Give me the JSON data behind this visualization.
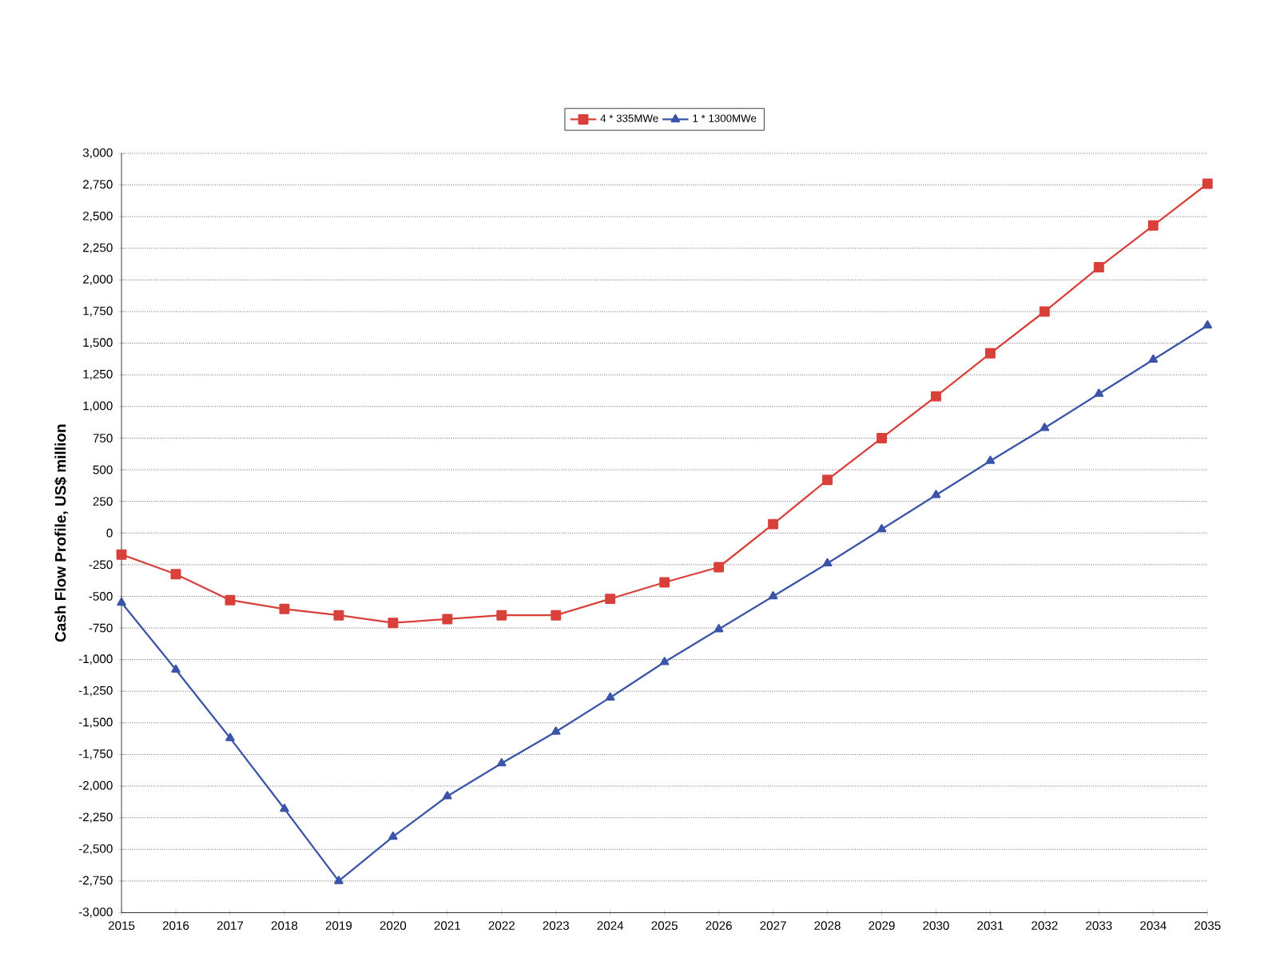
{
  "chart_data": {
    "type": "line",
    "ylabel": "Cash Flow Profile, US$ million",
    "x": [
      2015,
      2016,
      2017,
      2018,
      2019,
      2020,
      2021,
      2022,
      2023,
      2024,
      2025,
      2026,
      2027,
      2028,
      2029,
      2030,
      2031,
      2032,
      2033,
      2034,
      2035
    ],
    "series": [
      {
        "name": "4 * 335MWe",
        "color": "#d9403a",
        "marker": "square",
        "values": [
          -170,
          -325,
          -530,
          -600,
          -650,
          -710,
          -680,
          -650,
          -650,
          -520,
          -390,
          -270,
          70,
          420,
          750,
          1080,
          1420,
          1750,
          2100,
          2430,
          2760
        ]
      },
      {
        "name": "1 * 1300MWe",
        "color": "#3a55a8",
        "marker": "triangle",
        "values": [
          -550,
          -1080,
          -1620,
          -2180,
          -2750,
          -2400,
          -2080,
          -1820,
          -1570,
          -1300,
          -1020,
          -760,
          -500,
          -240,
          30,
          300,
          570,
          830,
          1100,
          1370,
          1640
        ]
      }
    ],
    "xlim": [
      2015,
      2035
    ],
    "xticks": [
      2015,
      2016,
      2017,
      2018,
      2019,
      2020,
      2021,
      2022,
      2023,
      2024,
      2025,
      2026,
      2027,
      2028,
      2029,
      2030,
      2031,
      2032,
      2033,
      2034,
      2035
    ],
    "ylim": [
      -3000,
      3000
    ],
    "yticks": [
      {
        "value": -3000,
        "label": "-3,000"
      },
      {
        "value": -2750,
        "label": "-2,750"
      },
      {
        "value": -2500,
        "label": "-2,500"
      },
      {
        "value": -2250,
        "label": "-2,250"
      },
      {
        "value": -2000,
        "label": "-2,000"
      },
      {
        "value": -1750,
        "label": "-1,750"
      },
      {
        "value": -1500,
        "label": "-1,500"
      },
      {
        "value": -1250,
        "label": "-1,250"
      },
      {
        "value": -1000,
        "label": "-1,000"
      },
      {
        "value": -750,
        "label": "-750"
      },
      {
        "value": -500,
        "label": "-500"
      },
      {
        "value": -250,
        "label": "-250"
      },
      0,
      250,
      500,
      750,
      {
        "value": 1000,
        "label": "1,000"
      },
      {
        "value": 1250,
        "label": "1,250"
      },
      {
        "value": 1500,
        "label": "1,500"
      },
      {
        "value": 1750,
        "label": "1,750"
      },
      {
        "value": 2000,
        "label": "2,000"
      },
      {
        "value": 2250,
        "label": "2,250"
      },
      {
        "value": 2500,
        "label": "2,500"
      },
      {
        "value": 2750,
        "label": "2,750"
      },
      {
        "value": 3000,
        "label": "3,000"
      }
    ],
    "grid": "y",
    "legend": "top",
    "line_style": "solid"
  }
}
